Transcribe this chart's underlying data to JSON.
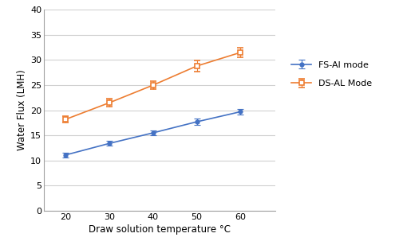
{
  "x": [
    20,
    30,
    40,
    50,
    60
  ],
  "fs_al_y": [
    11.1,
    13.4,
    15.5,
    17.7,
    19.7
  ],
  "fs_al_yerr": [
    0.5,
    0.5,
    0.5,
    0.6,
    0.5
  ],
  "ds_al_y": [
    18.2,
    21.5,
    25.0,
    28.8,
    31.5
  ],
  "ds_al_yerr": [
    0.6,
    0.8,
    0.8,
    1.1,
    0.9
  ],
  "fs_al_color": "#4472c4",
  "ds_al_color": "#ed7d31",
  "fs_al_label": "FS-Al mode",
  "ds_al_label": "DS-AL Mode",
  "xlabel": "Draw solution temperature °C",
  "ylabel": "Water Flux (LMH)",
  "xlim": [
    15,
    68
  ],
  "ylim": [
    0,
    40
  ],
  "yticks": [
    0,
    5,
    10,
    15,
    20,
    25,
    30,
    35,
    40
  ],
  "xticks": [
    20,
    30,
    40,
    50,
    60
  ],
  "bg_color": "#ffffff",
  "grid_color": "#d0d0d0"
}
